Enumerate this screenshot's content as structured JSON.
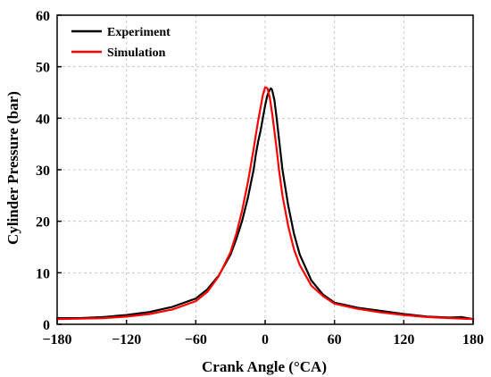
{
  "chart_data": {
    "type": "line",
    "title": "",
    "xlabel": "Crank Angle (°CA)",
    "ylabel": "Cylinder Pressure (bar)",
    "xlim": [
      -180,
      180
    ],
    "ylim": [
      0,
      60
    ],
    "xticks": [
      -180,
      -120,
      -60,
      0,
      60,
      120,
      180
    ],
    "yticks": [
      0,
      10,
      20,
      30,
      40,
      50,
      60
    ],
    "xtick_labels": [
      "−180",
      "−120",
      "−60",
      "0",
      "60",
      "120",
      "180"
    ],
    "ytick_labels": [
      "0",
      "10",
      "20",
      "30",
      "40",
      "50",
      "60"
    ],
    "grid": true,
    "legend_position": "top-left",
    "series": [
      {
        "name": "Experiment",
        "color": "#000000",
        "x": [
          -180,
          -160,
          -140,
          -120,
          -100,
          -80,
          -60,
          -50,
          -40,
          -30,
          -25,
          -20,
          -15,
          -10,
          -8,
          -6,
          -4,
          -2,
          0,
          2,
          4,
          5,
          6,
          8,
          10,
          12,
          15,
          20,
          25,
          30,
          40,
          50,
          60,
          80,
          100,
          120,
          140,
          160,
          170,
          180
        ],
        "y": [
          1.2,
          1.2,
          1.4,
          1.8,
          2.4,
          3.4,
          5.0,
          6.8,
          9.5,
          13.5,
          16.5,
          20.0,
          24.5,
          30.0,
          33.0,
          35.5,
          37.5,
          40.0,
          42.5,
          44.5,
          45.5,
          45.8,
          45.5,
          43.5,
          40.0,
          36.0,
          30.0,
          23.0,
          17.5,
          13.5,
          8.5,
          5.8,
          4.2,
          3.2,
          2.6,
          2.0,
          1.5,
          1.3,
          1.4,
          1.0
        ]
      },
      {
        "name": "Simulation",
        "color": "#ff0000",
        "x": [
          -180,
          -160,
          -140,
          -120,
          -100,
          -80,
          -60,
          -50,
          -40,
          -30,
          -25,
          -20,
          -15,
          -10,
          -8,
          -6,
          -4,
          -2,
          0,
          2,
          4,
          6,
          8,
          10,
          12,
          15,
          20,
          25,
          30,
          40,
          50,
          60,
          80,
          100,
          120,
          140,
          160,
          180
        ],
        "y": [
          1.0,
          1.1,
          1.2,
          1.5,
          2.0,
          2.9,
          4.5,
          6.3,
          9.4,
          14.0,
          17.5,
          22.0,
          27.5,
          34.0,
          36.8,
          39.5,
          42.0,
          44.5,
          46.0,
          45.8,
          44.0,
          41.0,
          37.5,
          34.0,
          30.0,
          25.0,
          19.0,
          14.5,
          11.5,
          7.5,
          5.5,
          4.0,
          3.0,
          2.3,
          1.8,
          1.4,
          1.2,
          1.0
        ]
      }
    ]
  }
}
